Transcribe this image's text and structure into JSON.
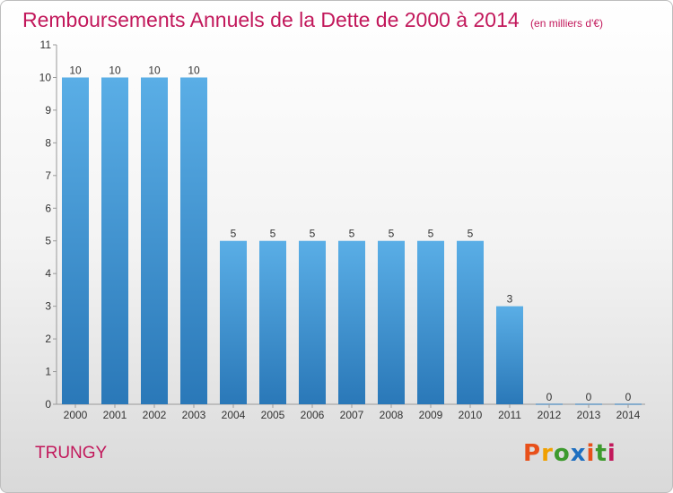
{
  "header": {
    "title": "Remboursements Annuels de la Dette de 2000 à 2014",
    "subtitle": "(en milliers d'€)"
  },
  "footer": {
    "place": "TRUNGY",
    "logo": [
      "P",
      "r",
      "o",
      "x",
      "i",
      "t",
      "i"
    ]
  },
  "colors": {
    "accent": "#c2185b",
    "bar_light": "#5aaee6",
    "bar_dark": "#2a78b8",
    "logo": [
      "#e8501a",
      "#f0a000",
      "#3d9a2d",
      "#1e6fc0",
      "#e8501a",
      "#3d9a2d",
      "#c2185b"
    ]
  },
  "chart_data": {
    "type": "bar",
    "title": "Remboursements Annuels de la Dette de 2000 à 2014",
    "subtitle": "(en milliers d'€)",
    "categories": [
      "2000",
      "2001",
      "2002",
      "2003",
      "2004",
      "2005",
      "2006",
      "2007",
      "2008",
      "2009",
      "2010",
      "2011",
      "2012",
      "2013",
      "2014"
    ],
    "values": [
      10,
      10,
      10,
      10,
      5,
      5,
      5,
      5,
      5,
      5,
      5,
      3,
      0,
      0,
      0
    ],
    "y_ticks": [
      "0",
      "1",
      "2",
      "3",
      "4",
      "5",
      "6",
      "7",
      "8",
      "9",
      "10",
      "11"
    ],
    "ylim": [
      0,
      11
    ],
    "xlabel": "",
    "ylabel": "",
    "grid": false,
    "legend": "none"
  }
}
